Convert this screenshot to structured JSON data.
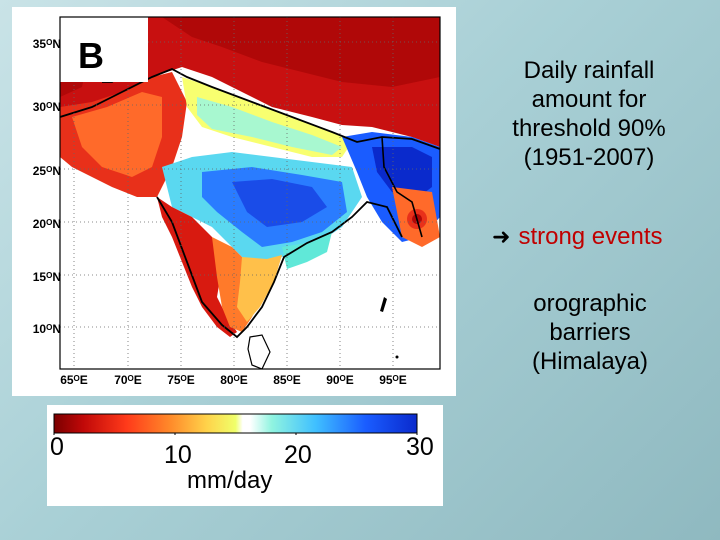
{
  "map": {
    "panel_letter": "B",
    "lat_labels": [
      "35ᴼN",
      "30ᴼN",
      "25ᴼN",
      "20ᴼN",
      "15ᴼN",
      "10ᴼN"
    ],
    "lon_labels": [
      "65ᴼE",
      "70ᴼE",
      "75ᴼE",
      "80ᴼE",
      "85ᴼE",
      "90ᴼE",
      "95ᴼE"
    ]
  },
  "colorbar": {
    "ticks": [
      "0",
      "10",
      "20",
      "30"
    ],
    "unit": "mm/day",
    "colors": [
      "#7a0000",
      "#d01010",
      "#ff4a1a",
      "#ff8a2a",
      "#ffd24a",
      "#f0ff6a",
      "#ffffff",
      "#70f0e0",
      "#3ab0ff",
      "#1a5cff",
      "#0a2acc"
    ]
  },
  "side_text": {
    "description_lines": [
      "Daily rainfall",
      "amount for",
      "threshold  90%",
      "(1951-2007)"
    ],
    "strong_events": "strong events",
    "orographic_lines": [
      "orographic",
      "barriers",
      "(Himalaya)"
    ]
  },
  "colors": {
    "strong_events_text": "#c00000",
    "background": "#b5d8dc"
  }
}
